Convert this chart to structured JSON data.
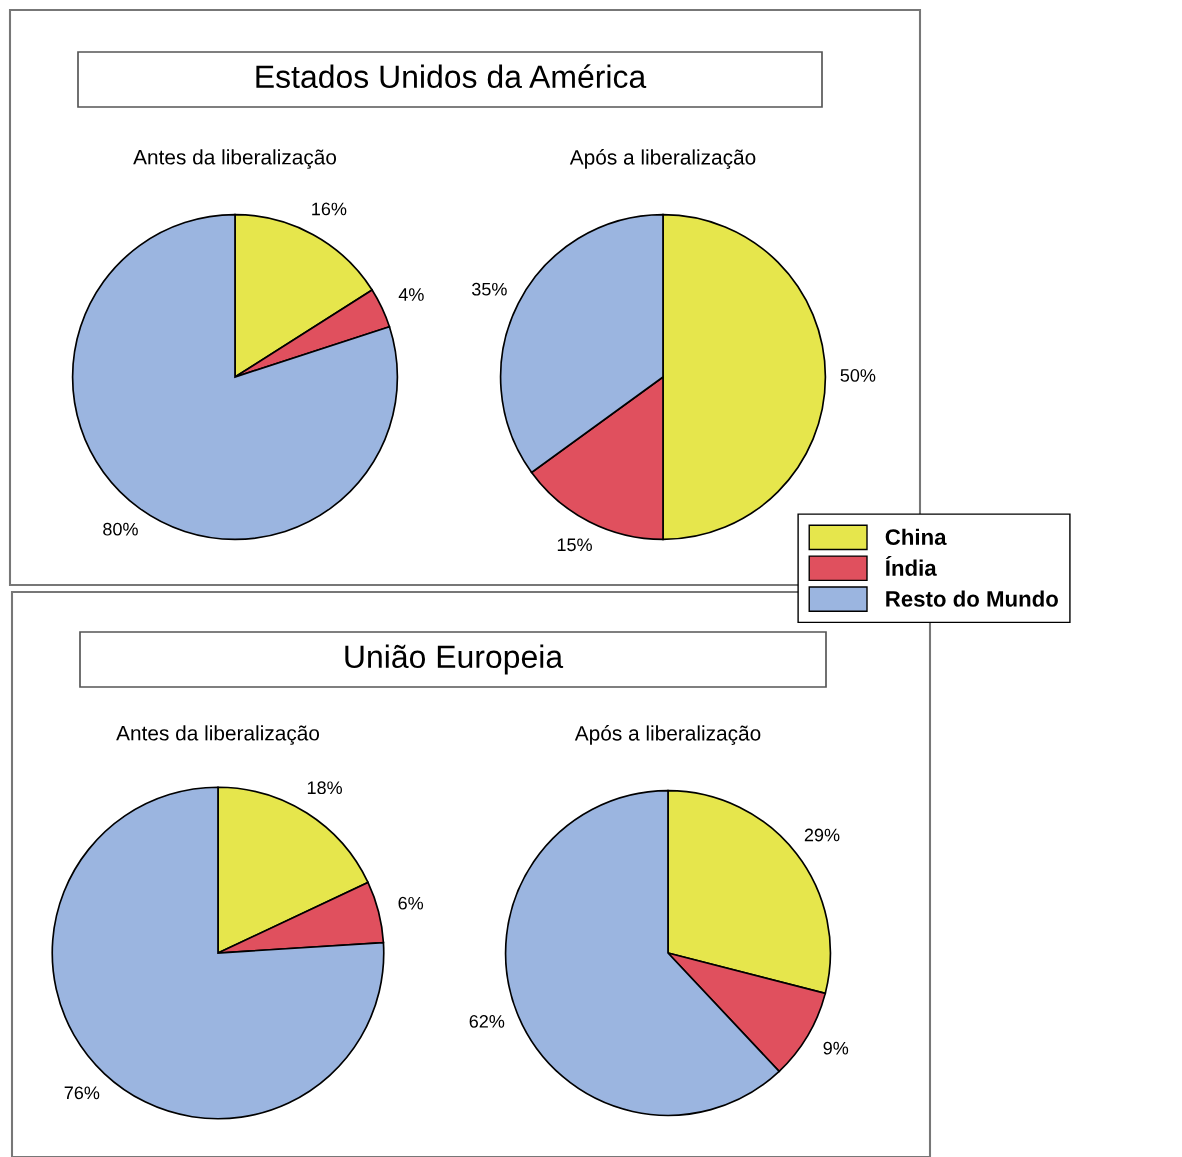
{
  "chart_data": [
    {
      "type": "pie",
      "title": "Estados Unidos da América",
      "subtitle": "Antes da liberalização",
      "categories": [
        "China",
        "Índia",
        "Resto do Mundo"
      ],
      "values": [
        16,
        4,
        80
      ],
      "value_labels": [
        "16%",
        "4%",
        "80%"
      ],
      "colors": [
        "#e6e64c",
        "#e0505e",
        "#9bb5e0"
      ],
      "legend": "right"
    },
    {
      "type": "pie",
      "subtitle": "Após a liberalização",
      "categories": [
        null,
        null,
        null
      ],
      "values": [
        50,
        15,
        35
      ],
      "value_labels": [
        "50%",
        "15%",
        "35%"
      ],
      "colors": [
        "#e6e64c",
        "#e0505e",
        "#9bb5e0"
      ]
    },
    {
      "type": "pie",
      "title": "União Europeia",
      "subtitle": "Antes da liberalização",
      "categories": [
        null,
        null,
        null
      ],
      "values": [
        18,
        6,
        76
      ],
      "value_labels": [
        "18%",
        "6%",
        "76%"
      ],
      "colors": [
        "#e6e64c",
        "#e0505e",
        "#9bb5e0"
      ]
    },
    {
      "type": "pie",
      "subtitle": "Após a liberalização",
      "categories": [
        null,
        null,
        null
      ],
      "values": [
        29,
        9,
        62
      ],
      "value_labels": [
        "29%",
        "9%",
        "62%"
      ],
      "colors": [
        "#e6e64c",
        "#e0505e",
        "#9bb5e0"
      ]
    }
  ]
}
